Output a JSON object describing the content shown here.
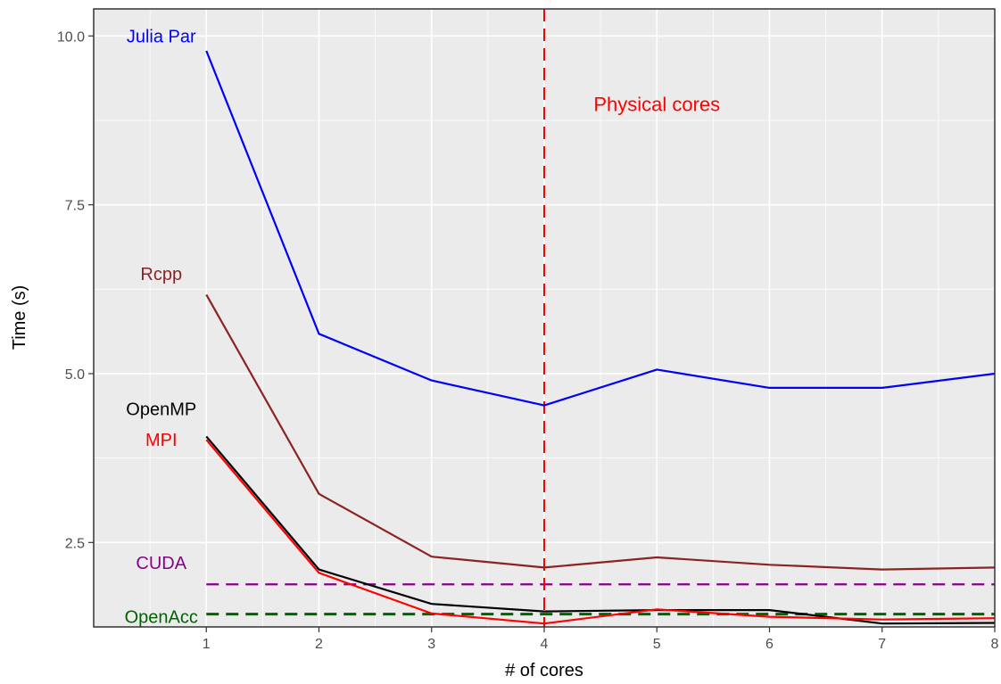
{
  "chart_data": {
    "type": "line",
    "title": "",
    "xlabel": "# of cores",
    "ylabel": "Time (s)",
    "xlim": [
      0,
      8
    ],
    "ylim": [
      1.25,
      10.4
    ],
    "x_ticks": [
      1,
      2,
      3,
      4,
      5,
      6,
      7,
      8
    ],
    "y_ticks": [
      2.5,
      5.0,
      7.5,
      10.0
    ],
    "y_tick_labels": [
      "2.5",
      "5.0",
      "7.5",
      "10.0"
    ],
    "x": [
      1,
      2,
      3,
      4,
      5,
      6,
      7,
      8
    ],
    "grid": true,
    "legend": "none (direct labels)",
    "series": [
      {
        "name": "Julia Par",
        "color": "#0000ff",
        "values": [
          9.78,
          5.59,
          4.9,
          4.53,
          5.06,
          4.79,
          4.79,
          5.0
        ]
      },
      {
        "name": "Rcpp",
        "color": "#8b2323",
        "values": [
          6.17,
          3.22,
          2.29,
          2.13,
          2.28,
          2.17,
          2.1,
          2.13
        ]
      },
      {
        "name": "OpenMP",
        "color": "#000000",
        "values": [
          4.07,
          2.1,
          1.59,
          1.48,
          1.5,
          1.5,
          1.3,
          1.31
        ]
      },
      {
        "name": "MPI",
        "color": "#ff0000",
        "values": [
          4.02,
          2.05,
          1.45,
          1.3,
          1.51,
          1.4,
          1.36,
          1.38
        ]
      }
    ],
    "reference_lines": [
      {
        "name": "CUDA",
        "orientation": "horizontal",
        "value": 1.88,
        "color": "#8b008b",
        "style": "dashed"
      },
      {
        "name": "OpenAcc",
        "orientation": "horizontal",
        "value": 1.44,
        "color": "#006400",
        "style": "dashed"
      },
      {
        "name": "Physical cores",
        "orientation": "vertical",
        "value": 4,
        "color": "#ff0000",
        "style": "dashed"
      }
    ],
    "direct_labels": [
      {
        "text": "Julia Par",
        "color": "#0000ff",
        "x": 0.6,
        "y": 10.0
      },
      {
        "text": "Rcpp",
        "color": "#8b2323",
        "x": 0.6,
        "y": 6.48
      },
      {
        "text": "OpenMP",
        "color": "#000000",
        "x": 0.6,
        "y": 4.48
      },
      {
        "text": "MPI",
        "color": "#ff0000",
        "x": 0.6,
        "y": 4.02
      },
      {
        "text": "CUDA",
        "color": "#8b008b",
        "x": 0.6,
        "y": 2.2
      },
      {
        "text": "OpenAcc",
        "color": "#006400",
        "x": 0.6,
        "y": 1.4
      },
      {
        "text": "Physical cores",
        "color": "#ff0000",
        "x": 5.0,
        "y": 8.98
      }
    ]
  }
}
